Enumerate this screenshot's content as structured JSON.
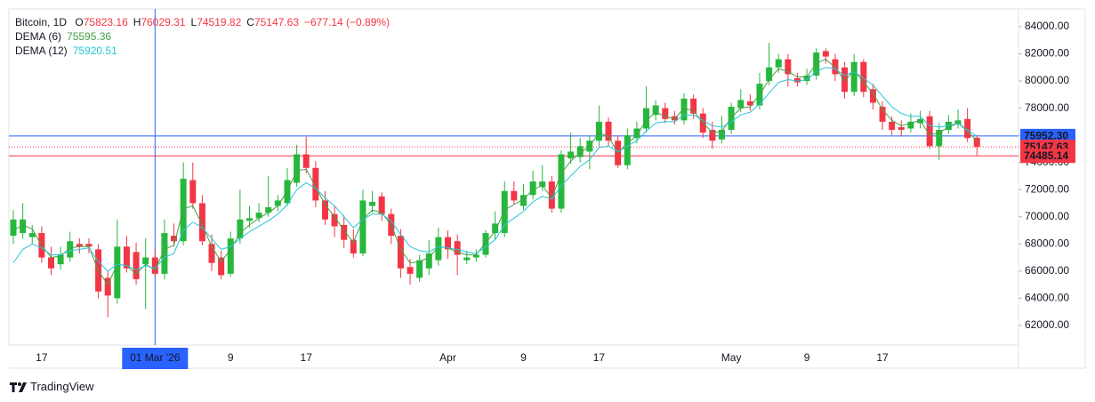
{
  "chart_data": {
    "type": "candlestick",
    "title": "Bitcoin, 1D",
    "ohlc_labels": [
      "O",
      "H",
      "L",
      "C"
    ],
    "change_label": "−677.14 (−0.89%)",
    "up_color": "#26b83c",
    "down_color": "#f23645",
    "categories": [
      null,
      null,
      null,
      "17",
      null,
      null,
      null,
      null,
      null,
      null,
      null,
      null,
      null,
      null,
      null,
      "01 Mar '26",
      null,
      null,
      null,
      null,
      null,
      null,
      null,
      "9",
      null,
      null,
      null,
      null,
      null,
      null,
      null,
      "17",
      null,
      null,
      null,
      null,
      null,
      null,
      null,
      null,
      null,
      null,
      null,
      null,
      null,
      null,
      "Apr",
      null,
      null,
      null,
      null,
      null,
      null,
      null,
      "9",
      null,
      null,
      null,
      null,
      null,
      null,
      null,
      "17",
      null,
      null,
      null,
      null,
      null,
      null,
      null,
      null,
      null,
      null,
      null,
      null,
      null,
      "May",
      null,
      null,
      null,
      null,
      null,
      null,
      null,
      "9",
      null,
      null,
      null,
      null,
      null,
      null,
      null,
      "17",
      null,
      null,
      null,
      null,
      null,
      null,
      null,
      null,
      null,
      null
    ],
    "open": [
      68600,
      68800,
      68500,
      68800,
      67000,
      66500,
      67000,
      68000,
      68000,
      67600,
      65500,
      64000,
      67800,
      67400,
      66500,
      67000,
      65800,
      68600,
      68200,
      72700,
      71000,
      68000,
      67000,
      65800,
      68400,
      69700,
      69900,
      70300,
      70800,
      71000,
      72500,
      74600,
      73600,
      71200,
      70200,
      69400,
      68300,
      67300,
      70800,
      71500,
      70200,
      68600,
      66300,
      65500,
      66200,
      66800,
      68500,
      68200,
      66800,
      67000,
      67200,
      68800,
      68800,
      71900,
      70800,
      71600,
      72200,
      72600,
      70600,
      74300,
      74400,
      74800,
      75600,
      77000,
      75600,
      73800,
      75800,
      76500,
      77500,
      78000,
      77400,
      77100,
      78700,
      77600,
      76400,
      75700,
      76400,
      78000,
      78500,
      78200,
      80000,
      81000,
      81600,
      80200,
      80000,
      80400,
      82200,
      81600,
      81000,
      79200,
      81400,
      79400,
      78100,
      77000,
      76600,
      76500,
      76900,
      77400,
      75200,
      76400,
      76800,
      77200,
      75823.16
    ],
    "high": [
      70500,
      71000,
      69400,
      69300,
      67800,
      67800,
      68900,
      68400,
      68400,
      68000,
      66000,
      69800,
      68600,
      68100,
      68400,
      67600,
      69800,
      69500,
      74000,
      74000,
      71600,
      68700,
      67500,
      68900,
      72000,
      70800,
      71000,
      73000,
      71600,
      73600,
      75300,
      75900,
      74100,
      71900,
      70800,
      70100,
      69100,
      72000,
      71900,
      71800,
      70600,
      69100,
      66900,
      67200,
      68300,
      69200,
      69000,
      68700,
      67500,
      67600,
      69000,
      70400,
      72600,
      72600,
      72400,
      73400,
      73800,
      73000,
      74900,
      76200,
      75800,
      76000,
      78200,
      77300,
      76000,
      76500,
      77000,
      79600,
      78600,
      78400,
      77800,
      79100,
      79000,
      78000,
      77000,
      77400,
      78400,
      79400,
      79000,
      80600,
      82800,
      82000,
      82000,
      80600,
      80900,
      82400,
      82400,
      82000,
      81400,
      82000,
      81600,
      79800,
      78500,
      77400,
      77100,
      77600,
      77800,
      77800,
      76900,
      77500,
      77900,
      78000,
      76029.31
    ],
    "low": [
      68000,
      68400,
      68000,
      66600,
      65700,
      66100,
      66700,
      67300,
      67300,
      64000,
      62600,
      63600,
      65900,
      65000,
      63200,
      65600,
      65400,
      67800,
      67900,
      70600,
      67900,
      66000,
      65400,
      65600,
      68000,
      69200,
      69600,
      70000,
      70400,
      70800,
      72200,
      73200,
      70700,
      69400,
      68500,
      67700,
      67000,
      67100,
      70300,
      69700,
      68000,
      65500,
      65000,
      65200,
      65700,
      66400,
      66900,
      65700,
      66500,
      66700,
      67000,
      68300,
      68500,
      70900,
      70500,
      71300,
      71900,
      70300,
      70300,
      73900,
      74000,
      73500,
      75200,
      75200,
      73600,
      73500,
      75400,
      76200,
      77100,
      76900,
      76800,
      76800,
      77200,
      75800,
      75000,
      75400,
      76100,
      77700,
      77800,
      77900,
      79700,
      80600,
      79600,
      79600,
      79700,
      80100,
      81300,
      80000,
      78700,
      78900,
      78800,
      77900,
      76400,
      76000,
      75900,
      76200,
      76500,
      75000,
      74200,
      76100,
      76500,
      75500,
      74519.82
    ],
    "close": [
      69800,
      69800,
      68800,
      67000,
      66200,
      67200,
      68200,
      67800,
      67800,
      64500,
      64200,
      67800,
      66200,
      65400,
      67000,
      65800,
      68800,
      68200,
      72800,
      71000,
      68200,
      66600,
      65700,
      68400,
      69800,
      69900,
      70300,
      70700,
      71200,
      72700,
      74600,
      73600,
      71200,
      69800,
      69300,
      68300,
      67300,
      71200,
      71100,
      70200,
      68600,
      66200,
      65800,
      66800,
      67300,
      68500,
      67600,
      67200,
      67000,
      67200,
      68800,
      69500,
      71900,
      71200,
      71600,
      72600,
      72600,
      70600,
      74600,
      74800,
      75200,
      75600,
      77000,
      75600,
      73800,
      76000,
      76500,
      78000,
      78200,
      77200,
      77100,
      78700,
      77600,
      76200,
      75600,
      76400,
      78100,
      78600,
      78200,
      79800,
      81000,
      81600,
      80500,
      79900,
      80400,
      82100,
      81800,
      80500,
      79200,
      81400,
      79200,
      78400,
      77000,
      76400,
      76400,
      77000,
      77200,
      75200,
      76400,
      77000,
      77100,
      75800,
      75147.63
    ],
    "series": [
      {
        "name": "DEMA (6)",
        "color": "#43a047",
        "values": [
          69000,
          69400,
          69100,
          67900,
          67000,
          67100,
          67700,
          67800,
          67800,
          66000,
          65000,
          66500,
          66400,
          65800,
          66500,
          66100,
          67600,
          67900,
          70600,
          70800,
          69400,
          67800,
          66700,
          67600,
          68800,
          69400,
          69900,
          70300,
          70800,
          71900,
          73400,
          73500,
          72200,
          70900,
          70000,
          69000,
          68100,
          69800,
          70500,
          70300,
          69400,
          67600,
          66600,
          66700,
          67000,
          67800,
          67700,
          67400,
          67200,
          67200,
          68100,
          68900,
          70500,
          70900,
          71300,
          72000,
          72300,
          71400,
          73200,
          74100,
          74700,
          75200,
          76200,
          75900,
          74700,
          75400,
          76000,
          77100,
          77700,
          77400,
          77200,
          78000,
          77800,
          76900,
          76200,
          76300,
          77300,
          78000,
          78100,
          79000,
          80100,
          80900,
          80700,
          80300,
          80300,
          81300,
          81600,
          81000,
          80000,
          80800,
          79900,
          79100,
          77900,
          77100,
          76700,
          76900,
          77100,
          76000,
          76200,
          76600,
          76900,
          76300,
          75595.36
        ]
      },
      {
        "name": "DEMA (12)",
        "color": "#26c6da",
        "values": [
          66600,
          67600,
          68000,
          67700,
          67200,
          67200,
          67500,
          67600,
          67700,
          66700,
          66000,
          66500,
          66400,
          66100,
          66400,
          66200,
          67000,
          67300,
          69000,
          69600,
          69200,
          68400,
          67600,
          67800,
          68400,
          68900,
          69300,
          69700,
          70200,
          70900,
          72000,
          72500,
          72100,
          71400,
          70800,
          70000,
          69200,
          69800,
          70200,
          70200,
          69700,
          68700,
          67800,
          67500,
          67400,
          67800,
          67700,
          67600,
          67400,
          67300,
          67800,
          68300,
          69400,
          69900,
          70400,
          71100,
          71500,
          71300,
          72300,
          73000,
          73700,
          74200,
          75100,
          75200,
          74800,
          75200,
          75600,
          76300,
          76900,
          77000,
          77000,
          77500,
          77500,
          77100,
          76700,
          76600,
          77000,
          77500,
          77700,
          78300,
          79100,
          79900,
          80100,
          80000,
          80100,
          80700,
          81000,
          80900,
          80400,
          80700,
          80200,
          79700,
          78900,
          78100,
          77600,
          77400,
          77400,
          76700,
          76600,
          76700,
          76900,
          76400,
          75920.51
        ]
      }
    ],
    "ylim": [
      60550,
      85310
    ],
    "yticks": [
      {
        "value": 62000,
        "label": "62000.00"
      },
      {
        "value": 64000,
        "label": "64000.00"
      },
      {
        "value": 66000,
        "label": "66000.00"
      },
      {
        "value": 68000,
        "label": "68000.00"
      },
      {
        "value": 70000,
        "label": "70000.00"
      },
      {
        "value": 72000,
        "label": "72000.00"
      },
      {
        "value": 74000,
        "label": "74000.00"
      },
      {
        "value": 76000,
        "label": "76000.00"
      },
      {
        "value": 78000,
        "label": "78000.00"
      },
      {
        "value": 80000,
        "label": "80000.00"
      },
      {
        "value": 82000,
        "label": "82000.00"
      },
      {
        "value": 84000,
        "label": "84000.00"
      }
    ],
    "crosshair": {
      "category": "01 Mar '26",
      "color": "#2962ff"
    },
    "price_lines": [
      {
        "value": 75952.3,
        "label": "75952.30",
        "color": "#2962ff",
        "style": "solid"
      },
      {
        "value": 75147.63,
        "label": "75147.63",
        "color": "#f23645",
        "style": "dotted"
      },
      {
        "value": 74485.14,
        "label": "74485.14",
        "color": "#f23645",
        "style": "solid"
      }
    ],
    "brand": "TradingView"
  }
}
